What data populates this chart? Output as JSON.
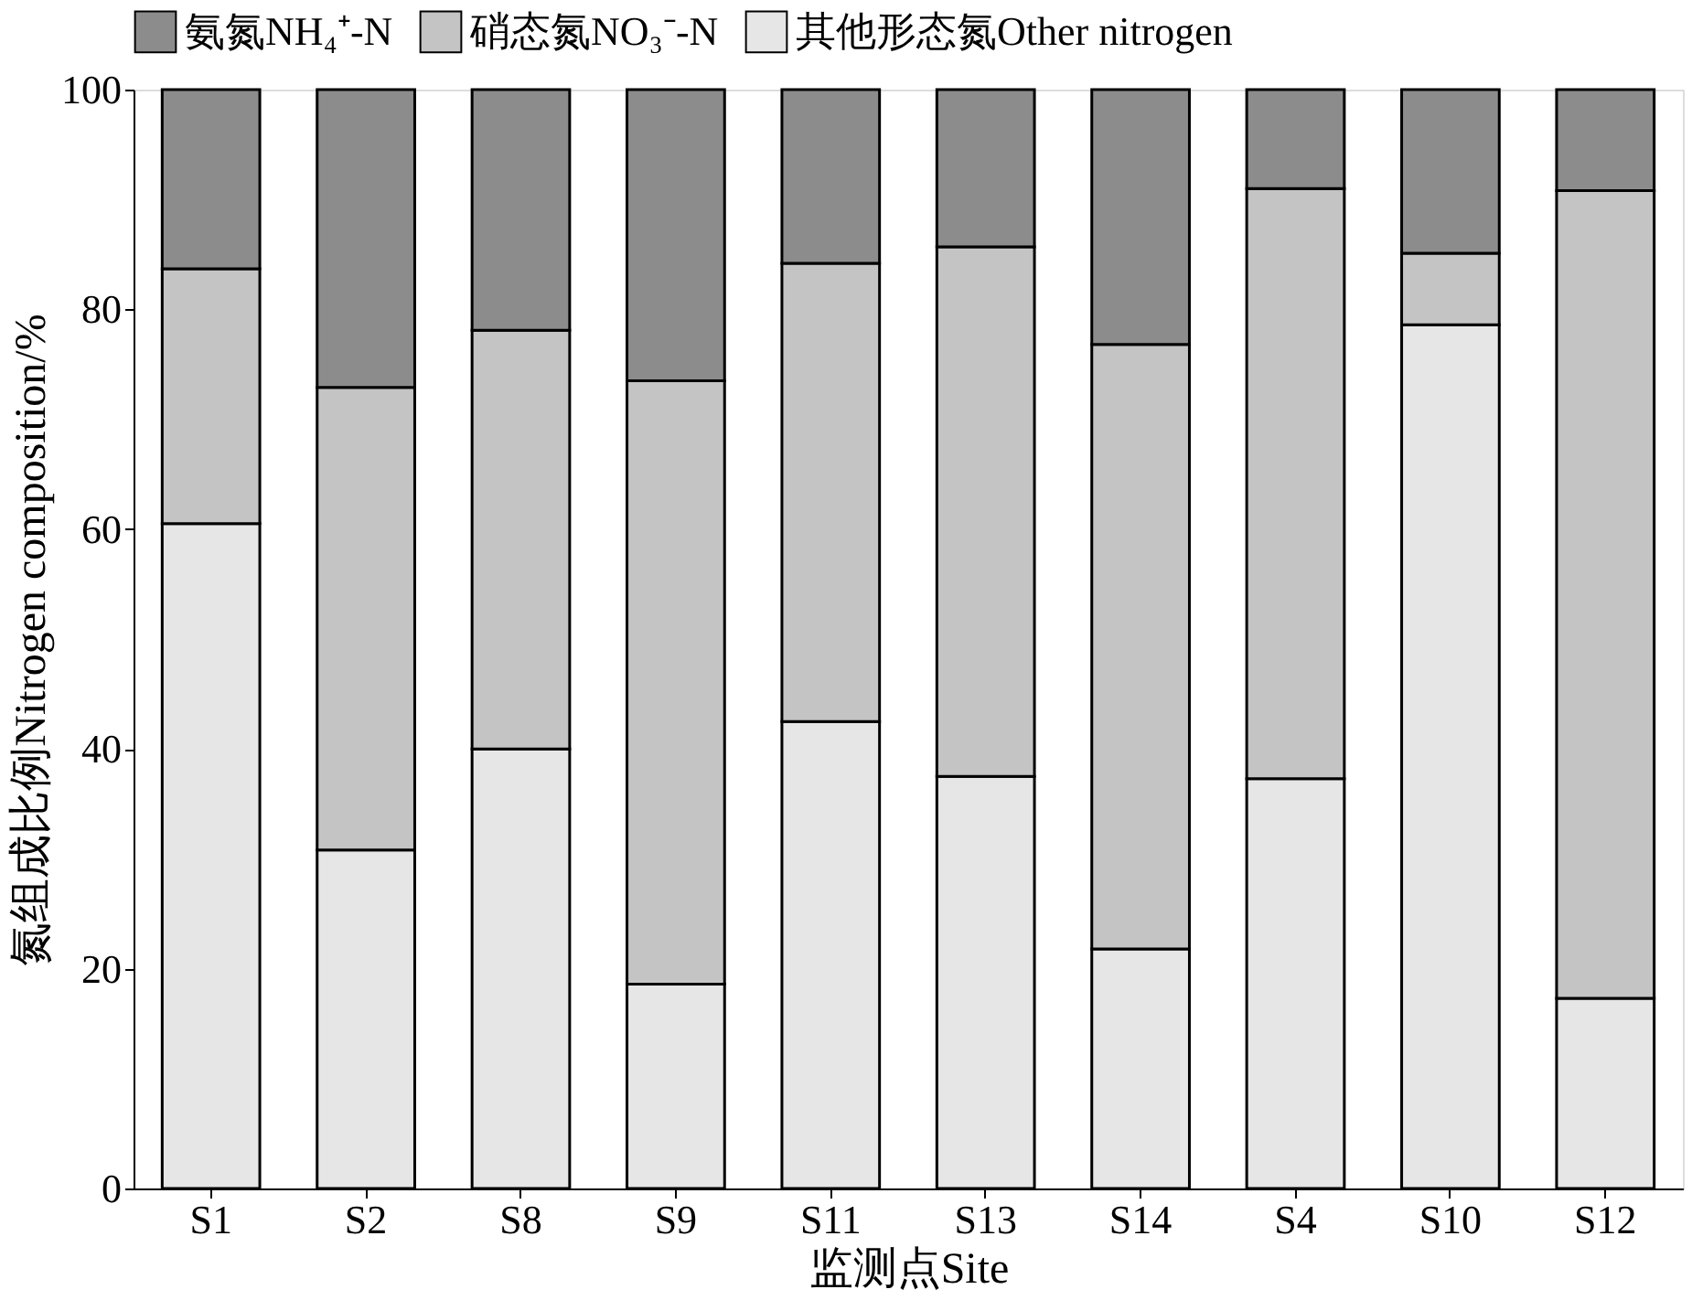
{
  "chart_data": {
    "type": "bar",
    "stacked": true,
    "xlabel": "监测点Site",
    "ylabel": "氮组成比例Nitrogen composition/%",
    "categories": [
      "S1",
      "S2",
      "S8",
      "S9",
      "S11",
      "S13",
      "S14",
      "S4",
      "S10",
      "S12"
    ],
    "series": [
      {
        "name": "其他形态氮Other nitrogen",
        "color": "#e6e6e6",
        "values": [
          60.5,
          30.8,
          40.0,
          18.6,
          42.5,
          37.5,
          21.8,
          37.3,
          78.6,
          17.3
        ]
      },
      {
        "name": "硝态氮NO₃⁻-N",
        "color": "#c4c4c4",
        "values": [
          23.2,
          42.1,
          38.1,
          54.9,
          41.7,
          48.2,
          55.0,
          53.7,
          6.5,
          73.5
        ]
      },
      {
        "name": "氨氮NH₄⁺-N",
        "color": "#8c8c8c",
        "values": [
          16.3,
          27.1,
          21.9,
          26.5,
          15.8,
          14.3,
          23.2,
          9.0,
          14.9,
          9.2
        ]
      }
    ],
    "ylim": [
      0,
      100
    ],
    "yticks": [
      0,
      20,
      40,
      60,
      80,
      100
    ],
    "grid": false,
    "legend": "top"
  }
}
